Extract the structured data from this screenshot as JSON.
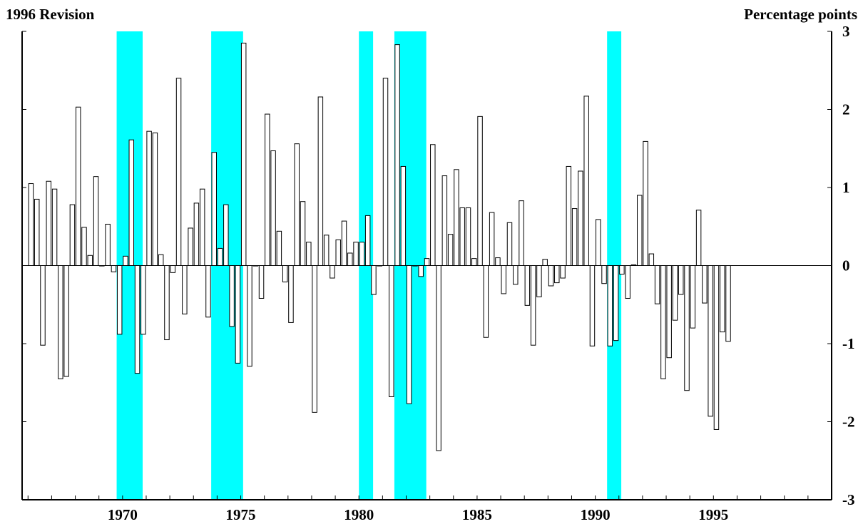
{
  "chart_data": {
    "type": "bar",
    "title": "1996 Revision",
    "ylabel": "Percentage points",
    "ylim": [
      -3,
      3
    ],
    "xlim": [
      1965.75,
      2000.0
    ],
    "yticks": [
      -3,
      -2,
      -1,
      0,
      1,
      2,
      3
    ],
    "ytick_labels": [
      "-3",
      "-2",
      "-1",
      "0",
      "1",
      "2",
      "3"
    ],
    "xticks": [
      1970,
      1975,
      1980,
      1985,
      1990,
      1995
    ],
    "xtick_labels": [
      "1970",
      "1975",
      "1980",
      "1985",
      "1990",
      "1995"
    ],
    "x_minor_ticks_per_year": 1,
    "frequency": "quarterly",
    "start_period": "1966Q1",
    "recessions": [
      {
        "start": 1969.75,
        "end": 1970.85
      },
      {
        "start": 1973.75,
        "end": 1975.1
      },
      {
        "start": 1980.0,
        "end": 1980.6
      },
      {
        "start": 1981.5,
        "end": 1982.85
      },
      {
        "start": 1990.5,
        "end": 1991.1
      }
    ],
    "values": [
      1.05,
      0.85,
      -1.02,
      1.08,
      0.98,
      -1.45,
      -1.42,
      0.78,
      2.03,
      0.49,
      0.13,
      1.14,
      0.0,
      0.53,
      -0.08,
      -0.88,
      0.12,
      1.61,
      -1.38,
      -0.88,
      1.72,
      1.7,
      0.14,
      -0.95,
      -0.09,
      2.4,
      -0.62,
      0.48,
      0.8,
      0.98,
      -0.66,
      1.45,
      0.22,
      0.78,
      -0.78,
      -1.25,
      2.85,
      -1.29,
      0.0,
      -0.42,
      1.94,
      1.47,
      0.44,
      -0.21,
      -0.73,
      1.56,
      0.82,
      0.3,
      -1.88,
      2.16,
      0.39,
      -0.16,
      0.33,
      0.57,
      0.16,
      0.3,
      0.3,
      0.64,
      -0.37,
      0.0,
      2.4,
      -1.68,
      2.83,
      1.27,
      -1.77,
      0.0,
      -0.14,
      0.09,
      1.55,
      -2.37,
      1.15,
      0.4,
      1.23,
      0.74,
      0.74,
      0.09,
      1.91,
      -0.92,
      0.68,
      0.1,
      -0.36,
      0.55,
      -0.24,
      0.83,
      -0.51,
      -1.02,
      -0.4,
      0.08,
      -0.26,
      -0.22,
      -0.16,
      1.27,
      0.73,
      1.21,
      2.17,
      -1.03,
      0.59,
      -0.23,
      -1.03,
      -0.96,
      -0.11,
      -0.42,
      0.01,
      0.9,
      1.59,
      0.15,
      -0.49,
      -1.45,
      -1.18,
      -0.7,
      -0.37,
      -1.6,
      -0.8,
      0.71,
      -0.48,
      -1.93,
      -2.1,
      -0.85,
      -0.97
    ]
  },
  "colors": {
    "recession": "#00ffff",
    "bar_fill": "#ffffff",
    "bar_stroke": "#000000",
    "axis": "#000000"
  }
}
